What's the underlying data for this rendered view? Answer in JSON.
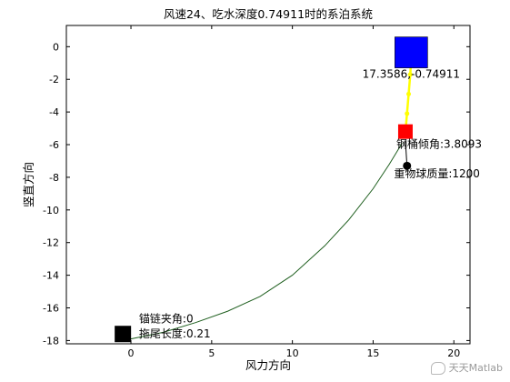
{
  "chart_data": {
    "type": "line",
    "title": "风速24、吃水深度0.74911时的系泊系统",
    "xlabel": "风力方向",
    "ylabel": "竖直方向",
    "xlim": [
      -4,
      21
    ],
    "ylim": [
      -18.2,
      1.3
    ],
    "xticks": [
      0,
      5,
      10,
      15,
      20
    ],
    "yticks": [
      0,
      -2,
      -4,
      -6,
      -8,
      -10,
      -12,
      -14,
      -16,
      -18
    ],
    "grid": false,
    "series": [
      {
        "kind": "catenary",
        "color": "#1f5f1f",
        "x": [
          0.0,
          2.0,
          4.0,
          6.0,
          8.0,
          10.0,
          12.0,
          13.5,
          15.0,
          16.0,
          16.8
        ],
        "y": [
          -17.9,
          -17.5,
          -16.9,
          -16.2,
          -15.3,
          -14.0,
          -12.2,
          -10.6,
          -8.7,
          -7.2,
          -5.9
        ]
      },
      {
        "kind": "steel-pipes",
        "color": "#ffff00",
        "x": [
          17.0,
          17.1,
          17.2,
          17.3,
          17.36
        ],
        "y": [
          -5.2,
          -4.1,
          -2.9,
          -1.7,
          -0.75
        ]
      },
      {
        "kind": "ball-chain",
        "color": "#000000",
        "x": [
          17.0,
          17.1
        ],
        "y": [
          -5.8,
          -7.3
        ]
      }
    ],
    "markers": [
      {
        "name": "buoy",
        "x": 17.36,
        "y": -0.35,
        "color": "#0000ff"
      },
      {
        "name": "steel-barrel",
        "x": 17.0,
        "y": -5.2,
        "color": "#ff0000"
      },
      {
        "name": "heavy-ball",
        "x": 17.1,
        "y": -7.3,
        "color": "#000000"
      },
      {
        "name": "anchor",
        "x": -0.5,
        "y": -17.6,
        "color": "#000000"
      }
    ],
    "annotations": [
      {
        "text": "17.3586,-0.74911",
        "x": 17.36,
        "y": -1.9
      },
      {
        "text": "钢桶倾角:3.8093",
        "x": 17.0,
        "y": -6.2
      },
      {
        "text": "重物球质量:1200",
        "x": 17.0,
        "y": -8.0
      },
      {
        "text": "锚链夹角:0",
        "x": 0.5,
        "y": -16.9
      },
      {
        "text": "拖尾长度:0.21",
        "x": 0.5,
        "y": -17.8
      }
    ]
  },
  "watermark": "天天Matlab"
}
